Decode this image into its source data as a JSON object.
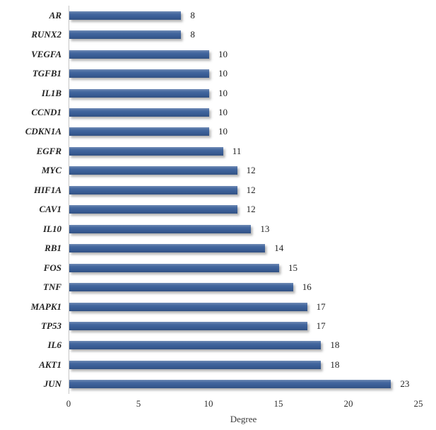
{
  "chart_data": {
    "type": "bar",
    "orientation": "horizontal",
    "title": "",
    "xlabel": "Degree",
    "ylabel": "",
    "categories": [
      "AR",
      "RUNX2",
      "VEGFA",
      "TGFB1",
      "IL1B",
      "CCND1",
      "CDKN1A",
      "EGFR",
      "MYC",
      "HIF1A",
      "CAV1",
      "IL10",
      "RB1",
      "FOS",
      "TNF",
      "MAPK1",
      "TP53",
      "IL6",
      "AKT1",
      "JUN"
    ],
    "values": [
      8,
      8,
      10,
      10,
      10,
      10,
      10,
      11,
      12,
      12,
      12,
      13,
      14,
      15,
      16,
      17,
      17,
      18,
      18,
      23
    ],
    "data_labels": [
      "8",
      "8",
      "10",
      "10",
      "10",
      "10",
      "10",
      "11",
      "12",
      "12",
      "12",
      "13",
      "14",
      "15",
      "16",
      "17",
      "17",
      "18",
      "18",
      "23"
    ],
    "xlim": [
      0,
      25
    ],
    "xticks": [
      0,
      5,
      10,
      15,
      20,
      25
    ],
    "xtick_labels": [
      "0",
      "5",
      "10",
      "15",
      "20",
      "25"
    ],
    "grid": false,
    "legend": null,
    "colors": {
      "bar": "#3B609A",
      "axis_line": "#C6C6C6",
      "label_text": "#252525",
      "background": "#FFFFFF"
    }
  }
}
